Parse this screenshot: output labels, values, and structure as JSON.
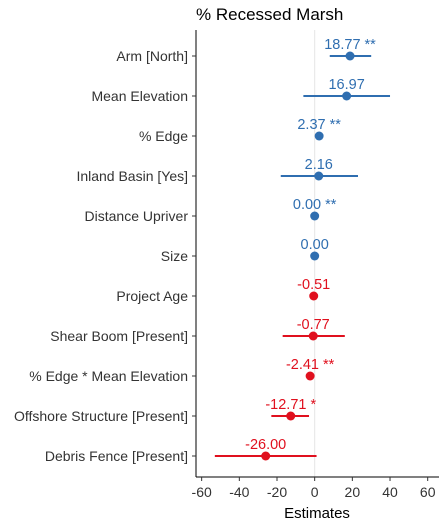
{
  "chart_data": {
    "type": "forest",
    "title": "% Recessed Marsh",
    "xlabel": "Estimates",
    "xlim": [
      -63,
      66
    ],
    "xticks": [
      -60,
      -40,
      -20,
      0,
      20,
      40,
      60
    ],
    "xtick_labels": [
      "-60",
      "-40",
      "-20",
      "0",
      "20",
      "40",
      "60"
    ],
    "zero_line": 0,
    "colors": {
      "positive": "#2f6eb0",
      "negative": "#e0101e"
    },
    "terms": [
      {
        "label": "Arm [North]",
        "estimate": 18.77,
        "lo": 8,
        "hi": 30,
        "text": "18.77 **",
        "sign": "positive"
      },
      {
        "label": "Mean Elevation",
        "estimate": 16.97,
        "lo": -6,
        "hi": 40,
        "text": "16.97",
        "sign": "positive"
      },
      {
        "label": "% Edge",
        "estimate": 2.37,
        "lo": 1.5,
        "hi": 3.2,
        "text": "2.37 **",
        "sign": "positive"
      },
      {
        "label": "Inland Basin [Yes]",
        "estimate": 2.16,
        "lo": -18,
        "hi": 23,
        "text": "2.16",
        "sign": "positive"
      },
      {
        "label": "Distance Upriver",
        "estimate": 0.0,
        "lo": -0.5,
        "hi": 0.5,
        "text": "0.00 **",
        "sign": "positive"
      },
      {
        "label": "Size",
        "estimate": 0.0,
        "lo": -0.5,
        "hi": 0.5,
        "text": "0.00",
        "sign": "positive"
      },
      {
        "label": "Project Age",
        "estimate": -0.51,
        "lo": -1.5,
        "hi": 0.5,
        "text": "-0.51",
        "sign": "negative"
      },
      {
        "label": "Shear Boom [Present]",
        "estimate": -0.77,
        "lo": -17,
        "hi": 16,
        "text": "-0.77",
        "sign": "negative"
      },
      {
        "label": "% Edge * Mean Elevation",
        "estimate": -2.41,
        "lo": -3.5,
        "hi": -1.3,
        "text": "-2.41 **",
        "sign": "negative"
      },
      {
        "label": "Offshore Structure [Present]",
        "estimate": -12.71,
        "lo": -23,
        "hi": -3,
        "text": "-12.71 *",
        "sign": "negative"
      },
      {
        "label": "Debris Fence [Present]",
        "estimate": -26.0,
        "lo": -53,
        "hi": 1,
        "text": "-26.00",
        "sign": "negative"
      }
    ]
  }
}
